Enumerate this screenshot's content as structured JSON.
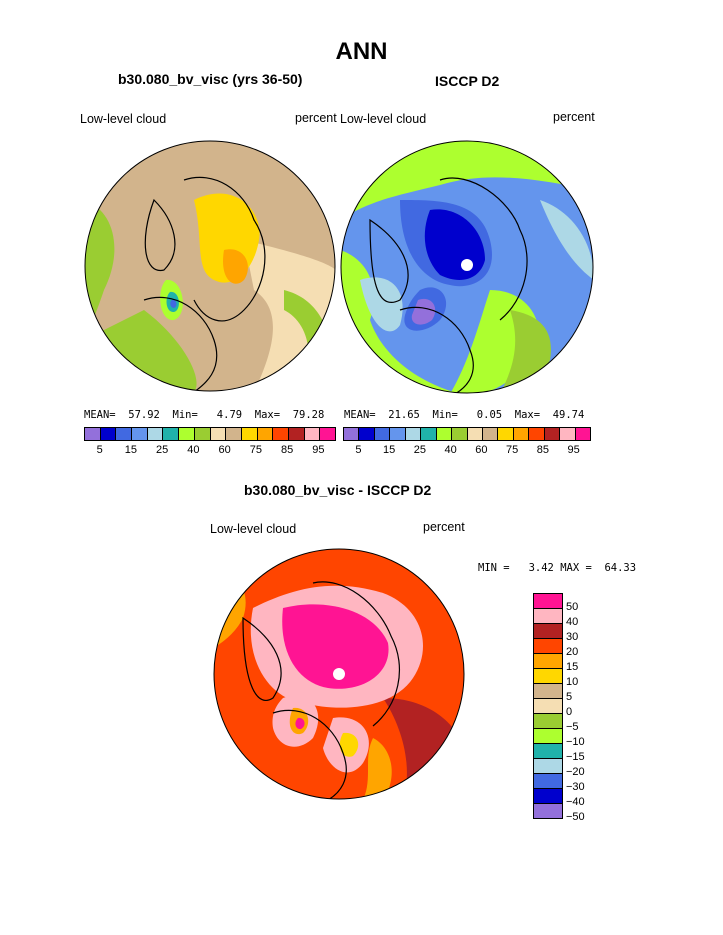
{
  "page_title": "ANN",
  "panels": {
    "left": {
      "title": "b30.080_bv_visc (yrs 36-50)",
      "variable": "Low-level cloud",
      "units": "percent",
      "mean_label": "MEAN=",
      "mean": "57.92",
      "min_label": "Min=",
      "min": "4.79",
      "max_label": "Max=",
      "max": "79.28"
    },
    "right": {
      "title": "ISCCP D2",
      "variable": "Low-level cloud",
      "units": "percent",
      "mean_label": "MEAN=",
      "mean": "21.65",
      "min_label": "Min=",
      "min": "0.05",
      "max_label": "Max=",
      "max": "49.74"
    },
    "diff": {
      "title": "b30.080_bv_visc - ISCCP D2",
      "variable": "Low-level cloud",
      "units": "percent",
      "min_label": "MIN =",
      "min": "3.42",
      "max_label": "MAX =",
      "max": "64.33"
    }
  },
  "colorbar": {
    "colors": [
      "#9370DB",
      "#0000CD",
      "#4169E1",
      "#6495ED",
      "#ADD8E6",
      "#20B2AA",
      "#ADFF2F",
      "#9ACD32",
      "#F5DEB3",
      "#D2B48C",
      "#FFD700",
      "#FFA500",
      "#FF4500",
      "#B22222",
      "#FFB6C1",
      "#FF1493"
    ],
    "tick_labels": [
      "5",
      "15",
      "25",
      "40",
      "60",
      "75",
      "85",
      "95"
    ]
  },
  "diff_colorbar": {
    "colors": [
      "#FF1493",
      "#FFB6C1",
      "#B22222",
      "#FF4500",
      "#FFA500",
      "#FFD700",
      "#D2B48C",
      "#F5DEB3",
      "#9ACD32",
      "#ADFF2F",
      "#20B2AA",
      "#ADD8E6",
      "#4169E1",
      "#0000CD",
      "#9370DB"
    ],
    "labels": [
      "50",
      "40",
      "30",
      "20",
      "15",
      "10",
      "5",
      "0",
      "−5",
      "−10",
      "−15",
      "−20",
      "−30",
      "−40",
      "−50"
    ]
  }
}
